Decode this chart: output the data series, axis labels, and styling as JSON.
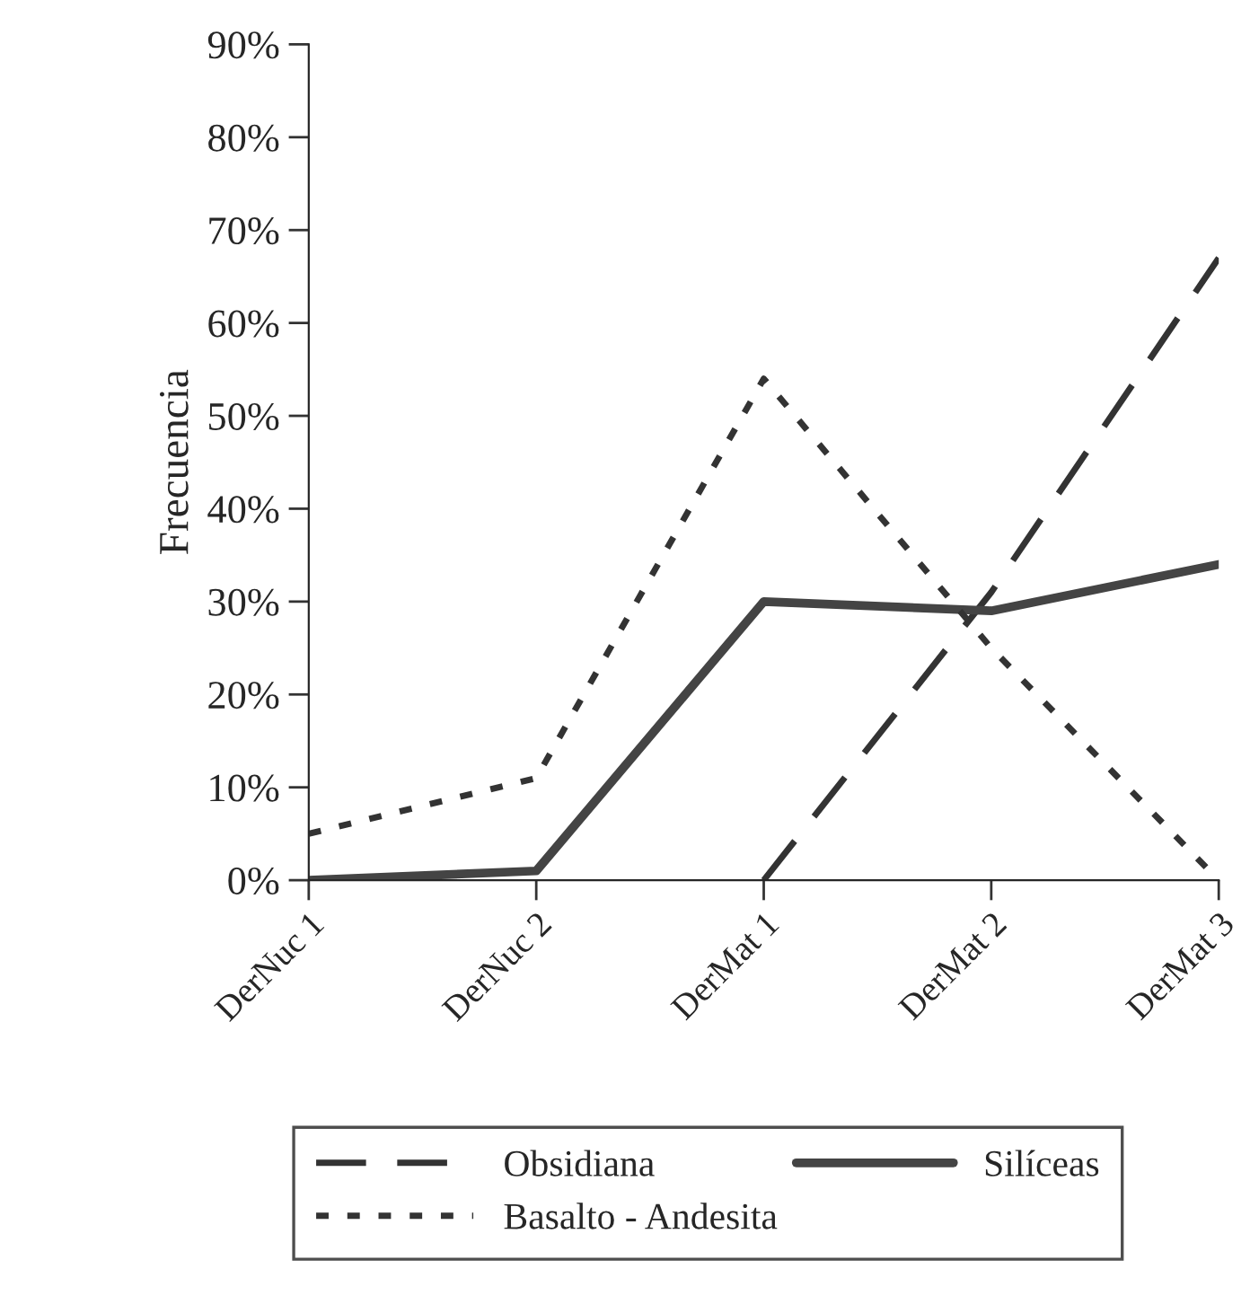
{
  "chart_data": {
    "type": "line",
    "ylabel": "Frecuencia",
    "categories": [
      "DerNuc 1",
      "DerNuc 2",
      "DerMat 1",
      "DerMat 2",
      "DerMat 3"
    ],
    "series": [
      {
        "name": "Obsidiana",
        "color": "#333333",
        "line_style": "dashed",
        "values": [
          null,
          null,
          0,
          31,
          67
        ]
      },
      {
        "name": "Silíceas",
        "color": "#444444",
        "line_style": "solid",
        "values": [
          0,
          1,
          30,
          29,
          34
        ]
      },
      {
        "name": "Basalto - Andesita",
        "color": "#333333",
        "line_style": "dotted",
        "values": [
          5,
          11,
          54,
          25,
          0
        ]
      }
    ],
    "ylim": [
      0,
      90
    ],
    "yticks": [
      {
        "value": 0,
        "label": "0%"
      },
      {
        "value": 10,
        "label": "10%"
      },
      {
        "value": 20,
        "label": "20%"
      },
      {
        "value": 30,
        "label": "30%"
      },
      {
        "value": 40,
        "label": "40%"
      },
      {
        "value": 50,
        "label": "50%"
      },
      {
        "value": 60,
        "label": "60%"
      },
      {
        "value": 70,
        "label": "70%"
      },
      {
        "value": 80,
        "label": "80%"
      },
      {
        "value": 90,
        "label": "90%"
      }
    ],
    "grid": false,
    "legend": "bottom",
    "marker": "none"
  }
}
